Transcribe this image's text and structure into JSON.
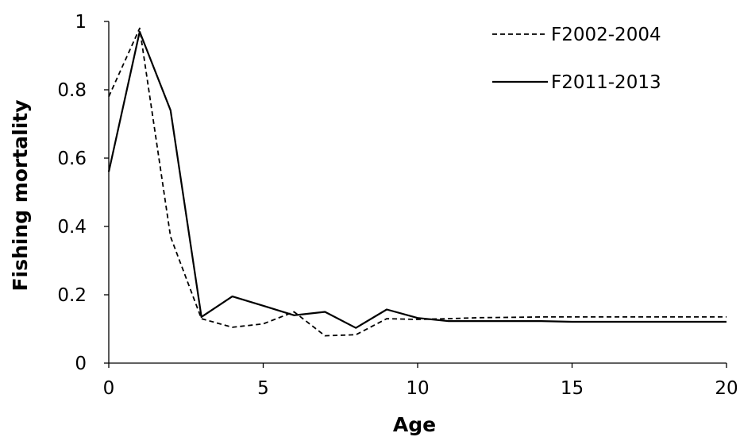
{
  "chart_data": {
    "type": "line",
    "title": "",
    "xlabel": "Age",
    "ylabel": "Fishing mortality",
    "xlim": [
      0,
      20
    ],
    "ylim": [
      0,
      1
    ],
    "x_ticks": [
      0,
      5,
      10,
      15,
      20
    ],
    "y_ticks": [
      0,
      0.2,
      0.4,
      0.6,
      0.8,
      1
    ],
    "x_tick_labels": [
      "0",
      "5",
      "10",
      "15",
      "20"
    ],
    "y_tick_labels": [
      "0",
      "0.2",
      "0.4",
      "0.6",
      "0.8",
      "1"
    ],
    "grid": false,
    "legend_position": "top-right",
    "x": [
      0,
      1,
      2,
      3,
      4,
      5,
      6,
      7,
      8,
      9,
      10,
      11,
      12,
      13,
      14,
      15,
      16,
      17,
      18,
      19,
      20
    ],
    "series": [
      {
        "name": "F2002-2004",
        "style": "dashed",
        "color": "#000000",
        "values": [
          0.78,
          0.98,
          0.37,
          0.13,
          0.105,
          0.115,
          0.15,
          0.08,
          0.083,
          0.13,
          0.128,
          0.13,
          0.133,
          0.134,
          0.135,
          0.135,
          0.135,
          0.135,
          0.135,
          0.135,
          0.135
        ]
      },
      {
        "name": "F2011-2013",
        "style": "solid",
        "color": "#000000",
        "values": [
          0.56,
          0.97,
          0.74,
          0.135,
          0.195,
          0.168,
          0.14,
          0.15,
          0.103,
          0.157,
          0.132,
          0.123,
          0.123,
          0.123,
          0.123,
          0.121,
          0.121,
          0.121,
          0.121,
          0.121,
          0.121
        ]
      }
    ]
  }
}
